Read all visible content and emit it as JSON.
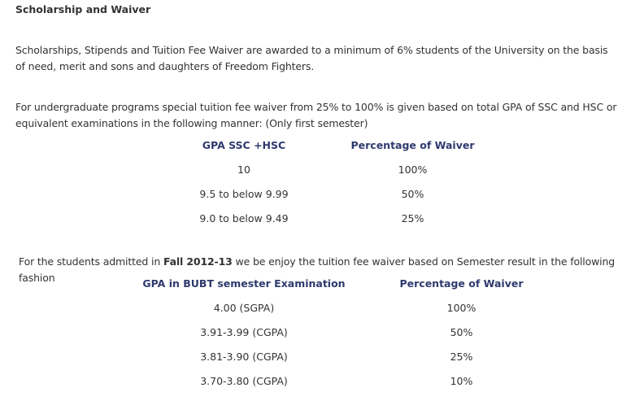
{
  "title": "Scholarship and Waiver",
  "paragraph1": "Scholarships, Stipends and Tuition Fee Waiver are awarded to a minimum of 6% students of the University on the basis of need, merit and sons and daughters of Freedom Fighters.",
  "paragraph2": "For undergraduate programs special tuition fee waiver from 25% to 100% is given based on total GPA of SSC and HSC or equivalent examinations in the following manner: (Only first semester)",
  "table1": {
    "headers": [
      "GPA SSC +HSC",
      "Percentage of Waiver"
    ],
    "rows": [
      [
        "10",
        "100%"
      ],
      [
        "9.5 to below 9.99",
        "50%"
      ],
      [
        "9.0 to below 9.49",
        "25%"
      ]
    ]
  },
  "paragraph3": {
    "before": "For the students admitted in ",
    "bold": "Fall 2012-13",
    "after": " we be enjoy the tuition fee waiver based on Semester result in the following fashion"
  },
  "table2": {
    "headers": [
      "GPA in BUBT semester Examination",
      "Percentage of Waiver"
    ],
    "rows": [
      [
        "4.00 (SGPA)",
        "100%"
      ],
      [
        "3.91-3.99 (CGPA)",
        "50%"
      ],
      [
        "3.81-3.90 (CGPA)",
        "25%"
      ],
      [
        "3.70-3.80 (CGPA)",
        "10%"
      ]
    ]
  }
}
